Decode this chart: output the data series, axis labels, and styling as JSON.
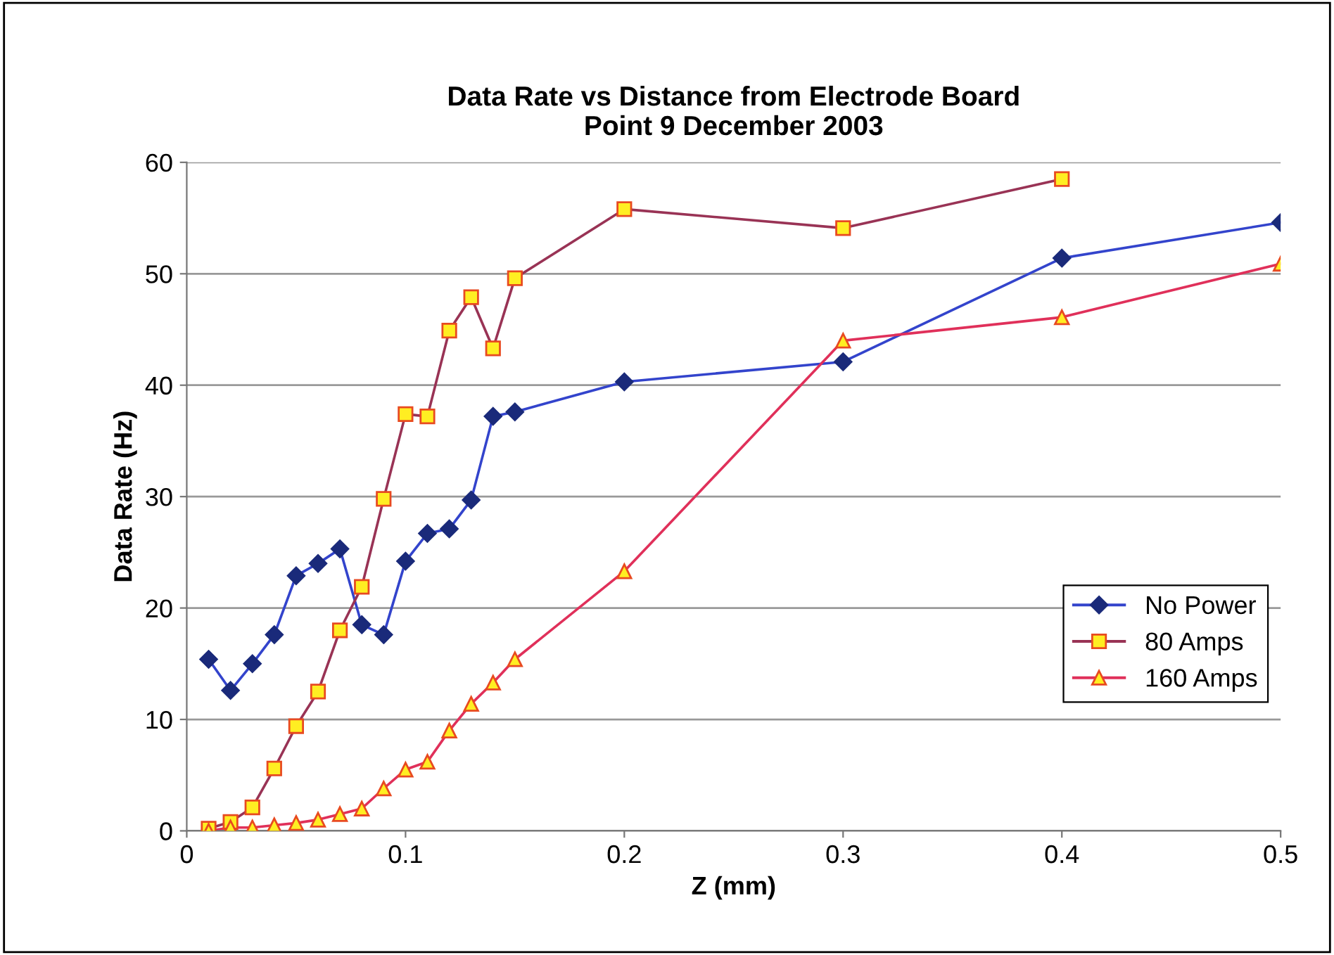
{
  "chart_data": {
    "type": "line",
    "title": "Data Rate vs Distance from Electrode Board\nPoint 9 December 2003",
    "xlabel": "Z (mm)",
    "ylabel": "Data Rate (Hz)",
    "x": [
      0.01,
      0.02,
      0.03,
      0.04,
      0.05,
      0.06,
      0.07,
      0.08,
      0.09,
      0.1,
      0.11,
      0.12,
      0.13,
      0.14,
      0.15,
      0.2,
      0.3,
      0.4,
      0.5
    ],
    "series": [
      {
        "name": "No Power",
        "color": "#3344cc",
        "marker": "diamond",
        "values": [
          15.4,
          12.6,
          15,
          17.6,
          22.9,
          24,
          25.3,
          18.5,
          17.6,
          24.2,
          26.7,
          27.1,
          29.7,
          37.2,
          37.6,
          40.3,
          42.1,
          51.4,
          54.6
        ]
      },
      {
        "name": "80 Amps",
        "color": "#993355",
        "marker": "square",
        "values": [
          0.2,
          0.8,
          2.1,
          5.6,
          9.4,
          12.5,
          18,
          21.9,
          29.8,
          37.4,
          37.2,
          44.9,
          47.9,
          43.3,
          49.6,
          55.8,
          54.1,
          58.5,
          null
        ]
      },
      {
        "name": "160 Amps",
        "color": "#e0305a",
        "marker": "triangle",
        "values": [
          0,
          0.3,
          0.3,
          0.5,
          0.7,
          1,
          1.5,
          2,
          3.8,
          5.5,
          6.2,
          9,
          11.4,
          13.3,
          15.4,
          23.3,
          44,
          46.1,
          50.9
        ]
      }
    ],
    "xlim": [
      0,
      0.5
    ],
    "xticks": [
      {
        "value": 0,
        "label": "0"
      },
      0.1,
      0.2,
      0.3,
      0.4,
      0.5
    ],
    "ylim": [
      0,
      60
    ],
    "yticks": [
      0,
      10,
      20,
      30,
      40,
      50,
      60
    ],
    "grid": "y",
    "legend": "right"
  }
}
